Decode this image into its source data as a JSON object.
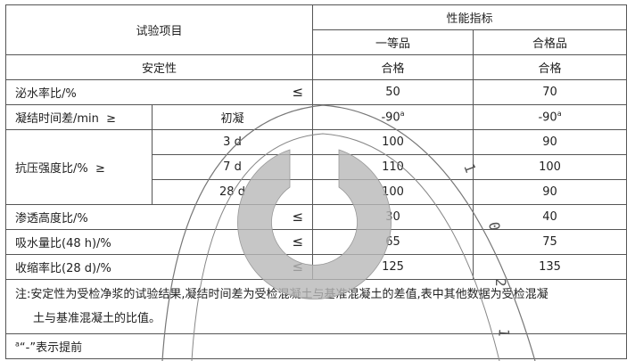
{
  "table": {
    "header": {
      "item": "试验项目",
      "performance": "性能指标",
      "grade1": "一等品",
      "grade2": "合格品"
    },
    "rows": [
      {
        "label": "安定性",
        "v1": "合格",
        "v2": "合格"
      },
      {
        "label": "泌水率比/%",
        "op": "≤",
        "v1": "50",
        "v2": "70"
      },
      {
        "label": "凝结时间差/min",
        "op": "≥",
        "sub": "初凝",
        "v1": "-90",
        "v1_note": "a",
        "v2": "-90",
        "v2_note": "a"
      },
      {
        "label": "抗压强度比/%",
        "op": "≥",
        "subs": [
          {
            "sub": "3 d",
            "v1": "100",
            "v2": "90"
          },
          {
            "sub": "7 d",
            "v1": "110",
            "v2": "100"
          },
          {
            "sub": "28 d",
            "v1": "100",
            "v2": "90"
          }
        ]
      },
      {
        "label": "渗透高度比/%",
        "op": "≤",
        "v1": "30",
        "v2": "40"
      },
      {
        "label": "吸水量比(48 h)/%",
        "op": "≤",
        "v1": "65",
        "v2": "75"
      },
      {
        "label": "收缩率比(28 d)/%",
        "op": "≤",
        "v1": "125",
        "v2": "135"
      }
    ],
    "note_line1": "注:安定性为受检净浆的试验结果,凝结时间差为受检混凝土与基准混凝土的差值,表中其他数据为受检混凝",
    "note_line2": "土与基准混凝土的比值。",
    "footnote_mark": "a",
    "footnote": "“-”表示提前"
  },
  "watermark": {
    "text": "1 0 2 1",
    "color": "#b8b8b8"
  }
}
